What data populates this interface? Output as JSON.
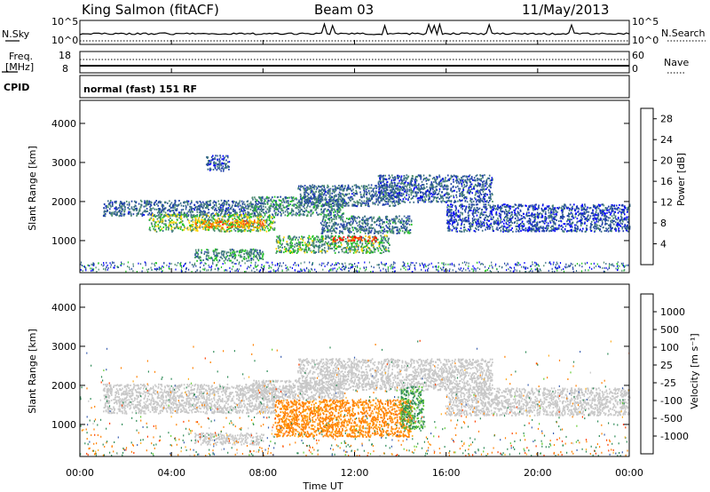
{
  "header": {
    "radar": "King Salmon (fitACF)",
    "beam": "Beam 03",
    "date": "11/May/2013"
  },
  "top_panels": {
    "nsky_label": "N.Sky",
    "nsky_ticks": [
      "10^5",
      "10^0"
    ],
    "nsearch_label": "N.Search",
    "nsearch_ticks": [
      "10^5",
      "10^0"
    ],
    "freq_label_1": "Freq.",
    "freq_label_2": "[MHz]",
    "freq_ticks": [
      "18",
      "8"
    ],
    "nave_label": "Nave",
    "nave_ticks": [
      "60",
      "0"
    ],
    "cpid_label": "CPID",
    "cpid_text": "normal (fast) 151 RF"
  },
  "colors": {
    "power_scale": [
      "#0000ff",
      "#1f3fa8",
      "#3c6e8a",
      "#4a8a6e",
      "#22c522",
      "#ffd200",
      "#ff9a00",
      "#ff5500",
      "#ff0000"
    ],
    "velocity_scale": [
      "#ff0000",
      "#ff4000",
      "#ff8000",
      "#ffae20",
      "#c8c8c8",
      "#c8c8c8",
      "#66cc33",
      "#2e8b57",
      "#3a5fb0",
      "#2a2ae0"
    ]
  },
  "chart_data": [
    {
      "type": "heatmap",
      "name": "power",
      "ylabel": "Slant Range [km]",
      "xlabel": "",
      "ylim": [
        180,
        4590
      ],
      "yticks": [
        "1000",
        "2000",
        "3000",
        "4000"
      ],
      "xlim_hours": [
        0,
        24
      ],
      "colorbar_label": "Power [dB]",
      "colorbar_ticks": [
        "4",
        "8",
        "12",
        "16",
        "20",
        "24",
        "28"
      ],
      "colorbar_range": [
        0,
        30
      ],
      "bands": [
        {
          "t": [
            1.0,
            7.5
          ],
          "r": [
            1650,
            2050
          ],
          "level": 8
        },
        {
          "t": [
            3.0,
            8.5
          ],
          "r": [
            1250,
            1700
          ],
          "level": 14
        },
        {
          "t": [
            5.0,
            8.0
          ],
          "r": [
            1350,
            1550
          ],
          "level": 22
        },
        {
          "t": [
            7.5,
            11.5
          ],
          "r": [
            1650,
            2150
          ],
          "level": 10
        },
        {
          "t": [
            9.5,
            14.0
          ],
          "r": [
            1900,
            2450
          ],
          "level": 8
        },
        {
          "t": [
            13.0,
            18.0
          ],
          "r": [
            2000,
            2700
          ],
          "level": 7
        },
        {
          "t": [
            16.0,
            24.0
          ],
          "r": [
            1250,
            1950
          ],
          "level": 6
        },
        {
          "t": [
            8.5,
            13.5
          ],
          "r": [
            700,
            1150
          ],
          "level": 13
        },
        {
          "t": [
            11.0,
            13.0
          ],
          "r": [
            1000,
            1120
          ],
          "level": 27
        },
        {
          "t": [
            10.5,
            14.5
          ],
          "r": [
            1200,
            1650
          ],
          "level": 9
        },
        {
          "t": [
            5.0,
            8.0
          ],
          "r": [
            500,
            800
          ],
          "level": 11
        },
        {
          "t": [
            5.5,
            6.5
          ],
          "r": [
            2800,
            3200
          ],
          "level": 6
        }
      ]
    },
    {
      "type": "heatmap",
      "name": "velocity",
      "ylabel": "Slant Range [km]",
      "xlabel": "Time UT",
      "ylim": [
        180,
        4590
      ],
      "yticks": [
        "1000",
        "2000",
        "3000",
        "4000"
      ],
      "xlim_hours": [
        0,
        24
      ],
      "xticks": [
        "00:00",
        "04:00",
        "08:00",
        "12:00",
        "16:00",
        "20:00",
        "00:00"
      ],
      "colorbar_label": "Velocity [m s⁻¹]",
      "colorbar_ticks": [
        "1000",
        "500",
        "100",
        "25",
        "-25",
        "-100",
        "-500",
        "-1000"
      ],
      "bands": [
        {
          "t": [
            1.0,
            8.5
          ],
          "r": [
            1300,
            2050
          ],
          "vel": 0
        },
        {
          "t": [
            7.5,
            11.5
          ],
          "r": [
            1650,
            2150
          ],
          "vel": 0
        },
        {
          "t": [
            9.5,
            18.0
          ],
          "r": [
            1900,
            2700
          ],
          "vel": 0
        },
        {
          "t": [
            16.0,
            24.0
          ],
          "r": [
            1250,
            1950
          ],
          "vel": 0
        },
        {
          "t": [
            8.5,
            14.5
          ],
          "r": [
            700,
            1650
          ],
          "vel": -150
        },
        {
          "t": [
            14.0,
            15.0
          ],
          "r": [
            900,
            2000
          ],
          "vel": 100
        },
        {
          "t": [
            5.0,
            8.0
          ],
          "r": [
            500,
            800
          ],
          "vel": 0
        }
      ]
    }
  ]
}
